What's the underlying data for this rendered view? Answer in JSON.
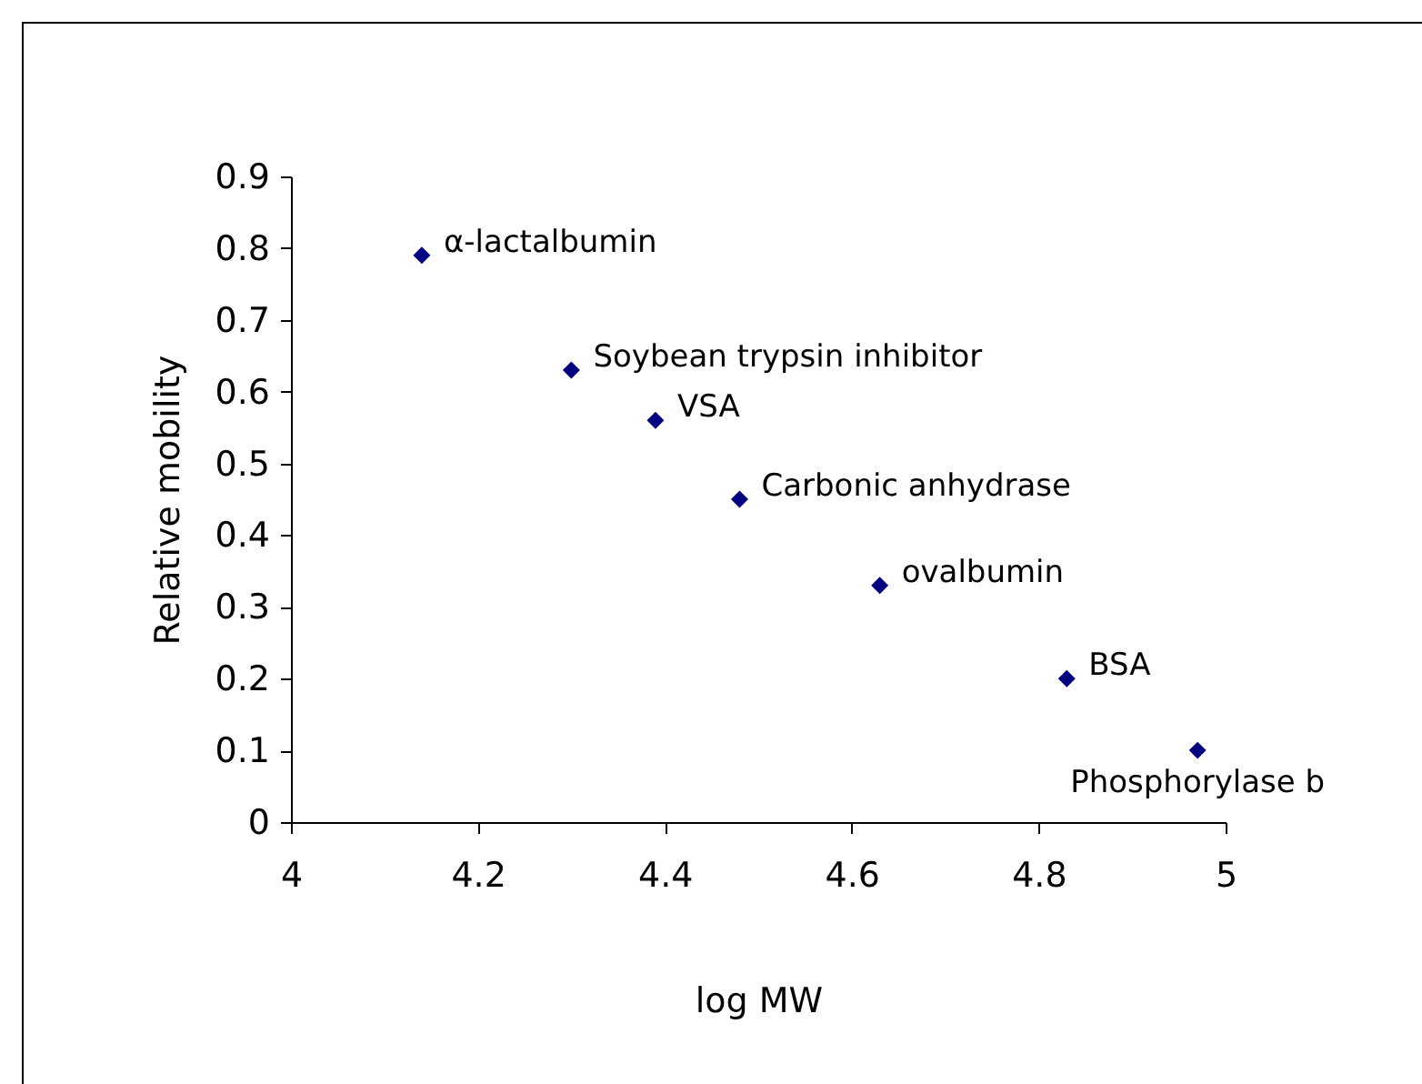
{
  "chart_data": {
    "type": "scatter",
    "xlabel": "log MW",
    "ylabel": "Relative mobility",
    "x": [
      4.14,
      4.3,
      4.39,
      4.48,
      4.63,
      4.83,
      4.97
    ],
    "series": [
      {
        "color": "#000080",
        "values": [
          0.79,
          0.63,
          0.56,
          0.45,
          0.33,
          0.2,
          0.1
        ]
      }
    ],
    "marker": "diamond",
    "xlim": [
      4,
      5
    ],
    "xticks": [
      4,
      4.2,
      4.4,
      4.6,
      4.8,
      5
    ],
    "ylim": [
      0,
      0.9
    ],
    "yticks": [
      0,
      0.1,
      0.2,
      0.3,
      0.4,
      0.5,
      0.6,
      0.7,
      0.8,
      0.9
    ],
    "grid": false,
    "annotations": [
      {
        "text": "α-lactalbumin",
        "x": 4.14,
        "y": 0.79
      },
      {
        "text": "Soybean trypsin inhibitor",
        "x": 4.3,
        "y": 0.63
      },
      {
        "text": "VSA",
        "x": 4.39,
        "y": 0.56
      },
      {
        "text": "Carbonic anhydrase",
        "x": 4.48,
        "y": 0.45
      },
      {
        "text": "ovalbumin",
        "x": 4.63,
        "y": 0.33
      },
      {
        "text": "BSA",
        "x": 4.83,
        "y": 0.2
      },
      {
        "text": "Phosphorylase b",
        "x": 4.97,
        "y": 0.1
      }
    ]
  }
}
